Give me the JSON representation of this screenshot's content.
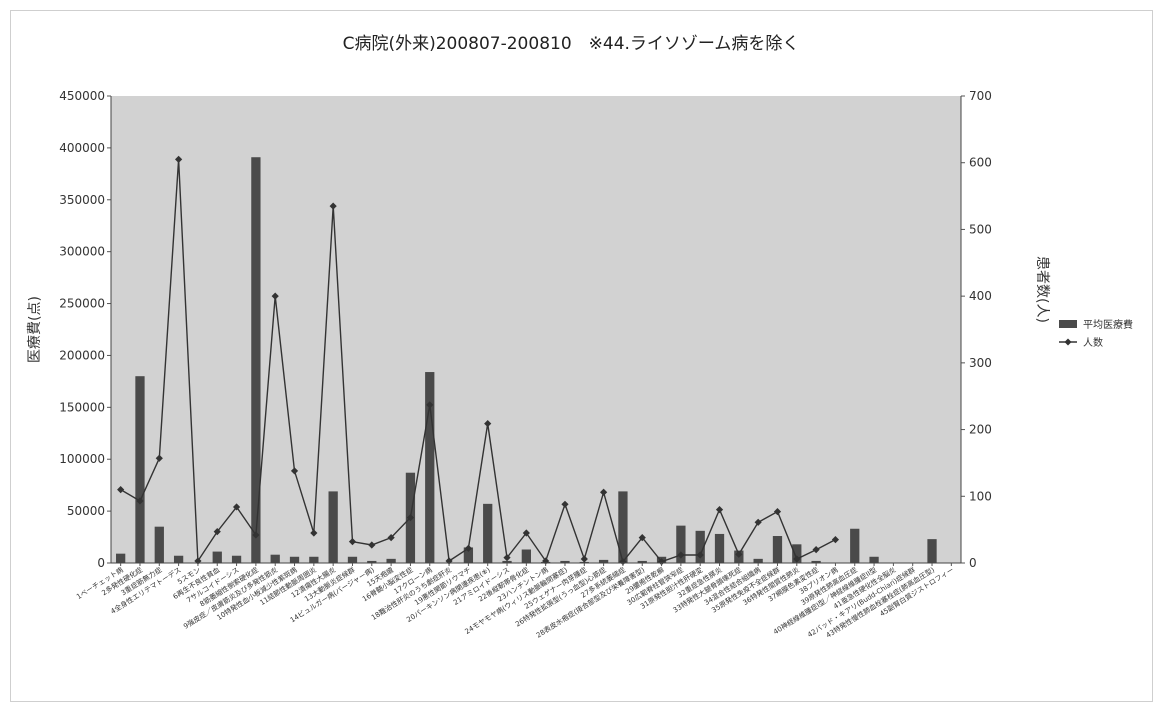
{
  "chart_data": {
    "type": "bar",
    "title": "C病院(外来)200807-200810　※44.ライソゾーム病を除く",
    "ylabel_left": "医療費(点)",
    "ylabel_right": "患者数(人)",
    "ylim_left": [
      0,
      450000
    ],
    "ylim_right": [
      0,
      700
    ],
    "yticks_left": [
      "0",
      "50000",
      "100000",
      "150000",
      "200000",
      "250000",
      "300000",
      "350000",
      "400000",
      "450000"
    ],
    "yticks_right": [
      "0",
      "100",
      "200",
      "300",
      "400",
      "500",
      "600",
      "700"
    ],
    "legend_position": "right",
    "categories": [
      "1ベーチェット病",
      "2多発性硬化症",
      "3重症筋無力症",
      "4全身性エリテマトーデス",
      "5スモン",
      "6再生不良性貧血",
      "7サルコイドーシス",
      "8筋萎縮性側索硬化症",
      "9強皮症／皮膚筋炎及び多発性筋炎",
      "10特発性血小板減少性紫斑病",
      "11結節性動脈周囲炎",
      "12潰瘍性大腸炎",
      "13大動脈炎症候群",
      "14ビュルガー病(バージャー病)",
      "15天疱瘡",
      "16脊髄小脳変性症",
      "17クローン病",
      "18難治性肝炎のうち劇症肝炎",
      "19悪性関節リウマチ",
      "20パーキンソン病関連疾患(※)",
      "21アミロイドーシス",
      "22後縦靭帯骨化症",
      "23ハンチントン病",
      "24モヤモヤ病(ウィリス動脈輪閉塞症)",
      "25ウェゲナー肉芽腫症",
      "26特発性拡張型(うっ血型)心筋症",
      "27多系統萎縮症",
      "28表皮水疱症(接合部型及び栄養障害型)",
      "29膿疱性乾癬",
      "30広範脊柱管狭窄症",
      "31原発性胆汁性肝硬変",
      "32重症急性膵炎",
      "33特発性大腿骨頭壊死症",
      "34混合性結合組織病",
      "35原発性免疫不全症候群",
      "36特発性間質性肺炎",
      "37網膜色素変性症",
      "38プリオン病",
      "39原発性肺高血圧症",
      "40神経線維腫症I型／神経線維腫症II型",
      "41亜急性硬化性全脳炎",
      "42バッド・キアリ(Budd-Chiari)症候群",
      "43特発性慢性肺血栓塞栓症(肺高血圧型)",
      "45副腎白質ジストロフィー"
    ],
    "series": [
      {
        "name": "平均医療費",
        "type": "bar",
        "axis": "left",
        "color": "#4a4a4a",
        "values": [
          9000,
          180000,
          35000,
          7000,
          0,
          11000,
          7000,
          391000,
          8000,
          6000,
          6000,
          69000,
          6000,
          2000,
          4000,
          87000,
          184000,
          0,
          15000,
          57000,
          2000,
          13000,
          1000,
          2000,
          1000,
          3000,
          69000,
          2000,
          6000,
          36000,
          31000,
          28000,
          12000,
          4000,
          26000,
          18000,
          2000,
          0,
          33000,
          6000,
          0,
          0,
          23000,
          0
        ]
      },
      {
        "name": "人数",
        "type": "line",
        "axis": "right",
        "color": "#333333",
        "marker": "diamond",
        "values": [
          110,
          93,
          157,
          605,
          3,
          47,
          84,
          42,
          400,
          138,
          45,
          535,
          32,
          27,
          38,
          68,
          237,
          3,
          22,
          209,
          8,
          45,
          3,
          88,
          6,
          106,
          2,
          38,
          2,
          12,
          12,
          80,
          13,
          61,
          77,
          6,
          20,
          35,
          null,
          null,
          null,
          null,
          null,
          null
        ]
      }
    ]
  }
}
